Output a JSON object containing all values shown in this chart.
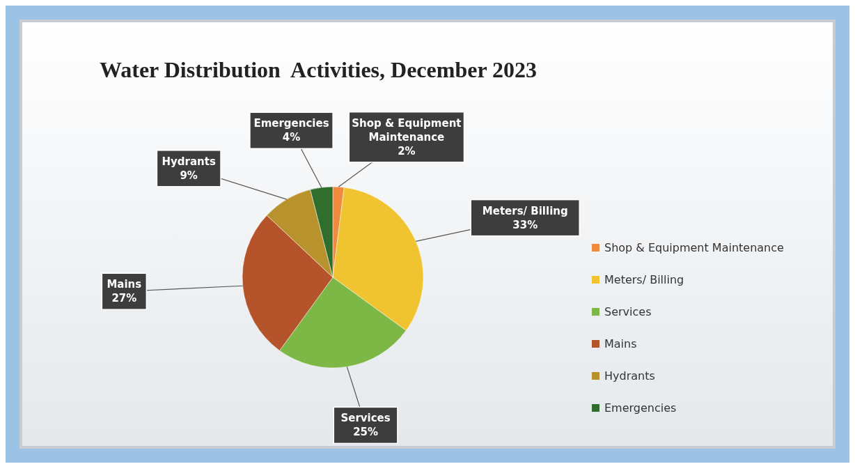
{
  "chart_data": {
    "type": "pie",
    "title": "Water Distribution  Activities, December 2023",
    "categories": [
      "Shop & Equipment Maintenance",
      "Meters/ Billing",
      "Services",
      "Mains",
      "Hydrants",
      "Emergencies"
    ],
    "values": [
      2,
      33,
      25,
      27,
      9,
      4
    ],
    "value_labels": [
      "2%",
      "33%",
      "25%",
      "27%",
      "9%",
      "4%"
    ],
    "colors": [
      "#f08a3c",
      "#f0c330",
      "#7db847",
      "#b5532a",
      "#b8922c",
      "#2f6e2c"
    ],
    "legend": "right"
  }
}
